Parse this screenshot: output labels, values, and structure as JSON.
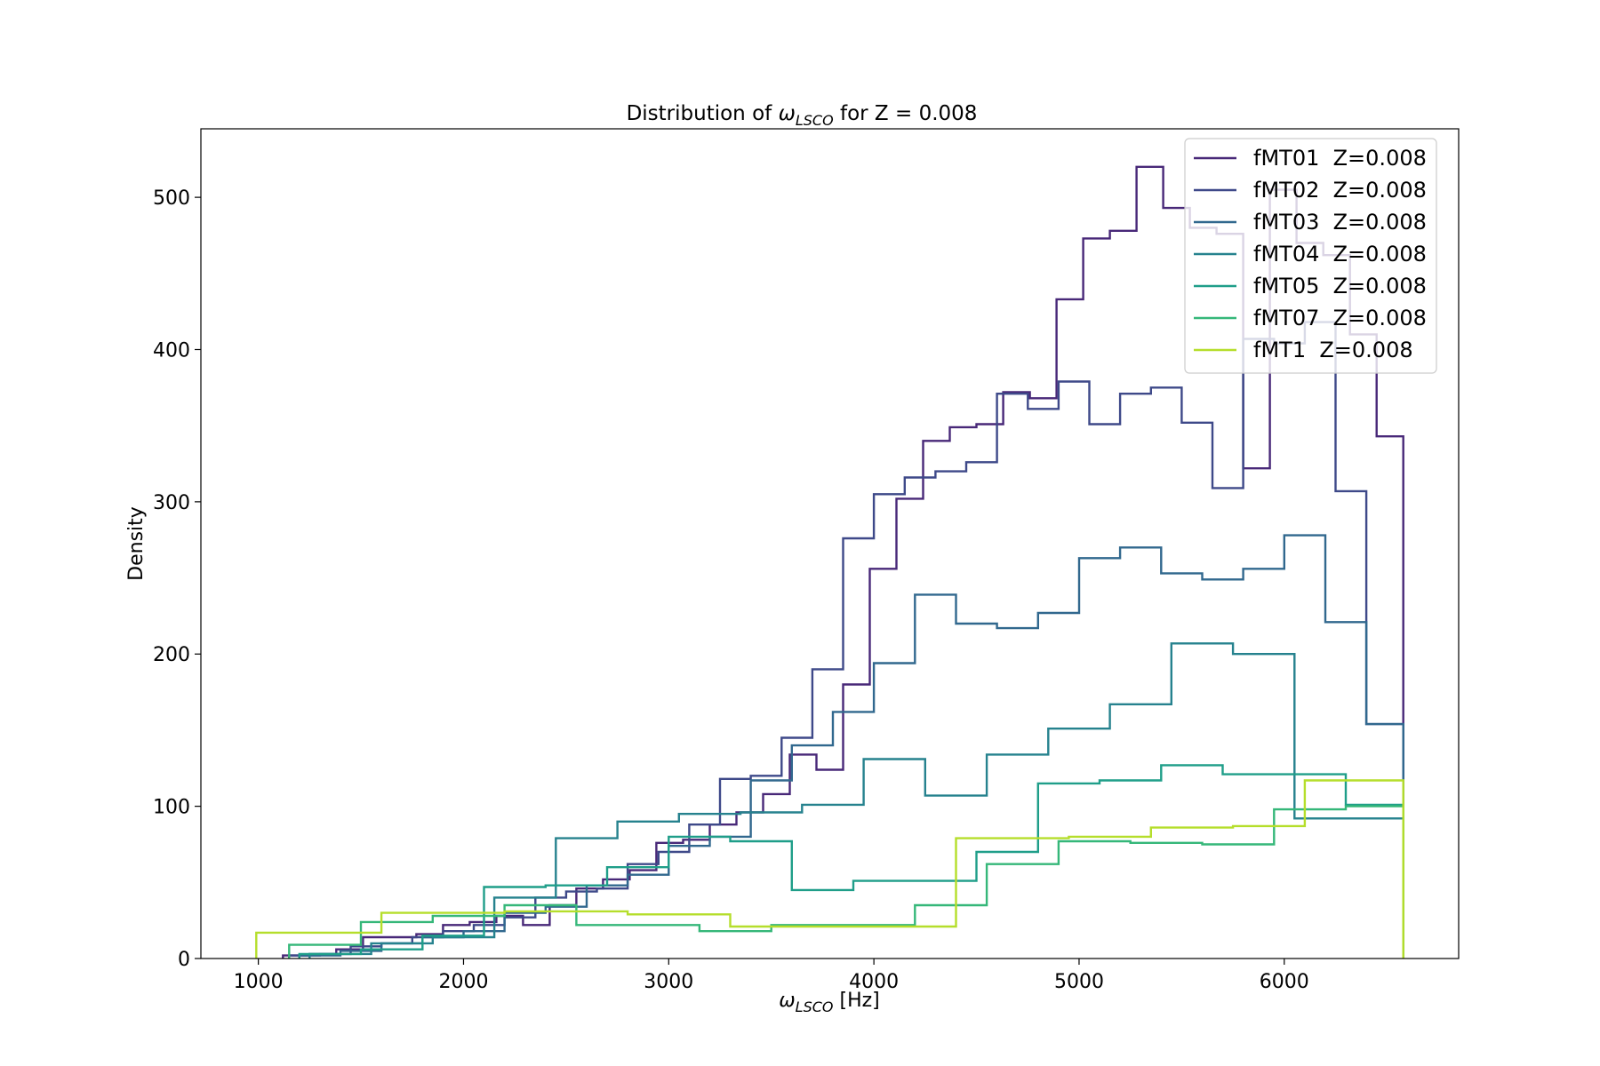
{
  "chart_data": {
    "type": "line",
    "drawstyle": "step",
    "title_prefix": "Distribution of ",
    "title_symbol": "ω",
    "title_sub": "LSCO",
    "title_suffix": " for Z = 0.008",
    "xlabel_symbol": "ω",
    "xlabel_sub": "LSCO",
    "xlabel_unit": " [Hz]",
    "ylabel": "Density",
    "xlim": [
      720,
      6850
    ],
    "ylim": [
      0,
      545
    ],
    "xticks": [
      1000,
      2000,
      3000,
      4000,
      5000,
      6000
    ],
    "yticks": [
      0,
      100,
      200,
      300,
      400,
      500
    ],
    "grid": false,
    "legend_position": "top-right",
    "series": [
      {
        "name": "fMT01  Z=0.008",
        "color": "#482878",
        "edges": [
          1120,
          1250,
          1380,
          1510,
          1640,
          1770,
          1900,
          2030,
          2160,
          2290,
          2420,
          2550,
          2680,
          2810,
          2940,
          3070,
          3200,
          3330,
          3460,
          3590,
          3720,
          3850,
          3980,
          4110,
          4240,
          4370,
          4500,
          4630,
          4760,
          4890,
          5020,
          5150,
          5280,
          5410,
          5540,
          5670,
          5800,
          5930,
          6060,
          6190,
          6320,
          6450,
          6580
        ],
        "values": [
          2,
          3,
          6,
          14,
          14,
          16,
          22,
          24,
          28,
          22,
          35,
          46,
          52,
          58,
          76,
          78,
          88,
          96,
          108,
          134,
          124,
          180,
          256,
          302,
          340,
          349,
          351,
          372,
          368,
          433,
          473,
          478,
          520,
          493,
          480,
          476,
          322,
          505,
          470,
          462,
          410,
          343
        ]
      },
      {
        "name": "fMT02  Z=0.008",
        "color": "#3e4989",
        "edges": [
          1150,
          1300,
          1450,
          1600,
          1750,
          1900,
          2050,
          2200,
          2350,
          2500,
          2650,
          2800,
          2950,
          3100,
          3250,
          3400,
          3550,
          3700,
          3850,
          4000,
          4150,
          4300,
          4450,
          4600,
          4750,
          4900,
          5050,
          5200,
          5350,
          5500,
          5650,
          5800,
          5950,
          6100,
          6250,
          6400,
          6580
        ],
        "values": [
          2,
          3,
          8,
          10,
          14,
          18,
          22,
          27,
          40,
          44,
          46,
          62,
          70,
          88,
          118,
          120,
          145,
          190,
          276,
          305,
          316,
          320,
          326,
          371,
          361,
          379,
          351,
          371,
          375,
          352,
          309,
          407,
          404,
          418,
          307,
          154
        ]
      },
      {
        "name": "fMT03  Z=0.008",
        "color": "#31688e",
        "edges": [
          1200,
          1400,
          1600,
          1800,
          2000,
          2200,
          2400,
          2600,
          2800,
          3000,
          3200,
          3400,
          3600,
          3800,
          4000,
          4200,
          4400,
          4600,
          4800,
          5000,
          5200,
          5400,
          5600,
          5800,
          6000,
          6200,
          6400,
          6580
        ],
        "values": [
          2,
          5,
          10,
          14,
          18,
          30,
          34,
          48,
          55,
          74,
          80,
          117,
          140,
          162,
          194,
          239,
          220,
          217,
          227,
          263,
          270,
          253,
          249,
          256,
          278,
          221,
          154
        ]
      },
      {
        "name": "fMT04  Z=0.008",
        "color": "#26828e",
        "edges": [
          1250,
          1550,
          1850,
          2150,
          2450,
          2750,
          3050,
          3350,
          3650,
          3950,
          4250,
          4550,
          4850,
          5150,
          5450,
          5750,
          6050,
          6350,
          6580
        ],
        "values": [
          3,
          10,
          14,
          40,
          79,
          90,
          95,
          96,
          101,
          131,
          107,
          134,
          151,
          167,
          207,
          200,
          92,
          92
        ]
      },
      {
        "name": "fMT05  Z=0.008",
        "color": "#1f9e89",
        "edges": [
          1200,
          1500,
          1800,
          2100,
          2400,
          2700,
          3000,
          3300,
          3600,
          3900,
          4200,
          4500,
          4800,
          5100,
          5400,
          5700,
          6000,
          6300,
          6580
        ],
        "values": [
          3,
          6,
          15,
          47,
          48,
          60,
          80,
          77,
          45,
          51,
          51,
          70,
          115,
          117,
          127,
          121,
          121,
          101
        ]
      },
      {
        "name": "fMT07  Z=0.008",
        "color": "#35b779",
        "edges": [
          1150,
          1500,
          1850,
          2200,
          2550,
          2850,
          3150,
          3500,
          3850,
          4200,
          4550,
          4900,
          5250,
          5600,
          5950,
          6300,
          6580
        ],
        "values": [
          9,
          24,
          28,
          35,
          22,
          22,
          18,
          22,
          22,
          35,
          62,
          77,
          76,
          75,
          98,
          100
        ]
      },
      {
        "name": "fMT1  Z=0.008",
        "color": "#b5de2b",
        "edges": [
          990,
          1600,
          2200,
          2800,
          3300,
          3850,
          4400,
          4950,
          5350,
          5750,
          6100,
          6580
        ],
        "values": [
          17,
          30,
          31,
          29,
          21,
          21,
          79,
          80,
          86,
          87,
          117
        ]
      }
    ]
  }
}
